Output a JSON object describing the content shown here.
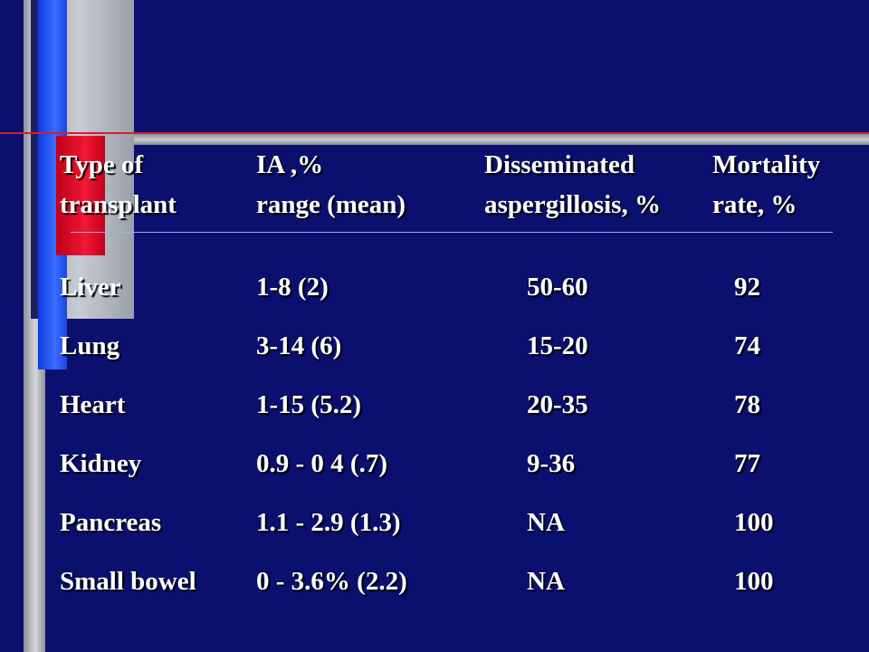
{
  "table": {
    "headers": [
      {
        "line1": "Type of",
        "line2": "transplant"
      },
      {
        "line1": "IA ,%",
        "line2": "range (mean)"
      },
      {
        "line1": "Disseminated",
        "line2": "aspergillosis, %"
      },
      {
        "line1": "Mortality",
        "line2": "rate, %"
      }
    ],
    "rows": [
      {
        "type": "Liver",
        "ia": "1-8 (2)",
        "disseminated": "50-60",
        "mortality": "92"
      },
      {
        "type": "Lung",
        "ia": "3-14 (6)",
        "disseminated": "15-20",
        "mortality": "74"
      },
      {
        "type": "Heart",
        "ia": "1-15 (5.2)",
        "disseminated": "20-35",
        "mortality": "78"
      },
      {
        "type": "Kidney",
        "ia": "0.9 - 0 4 (.7)",
        "disseminated": "9-36",
        "mortality": "77"
      },
      {
        "type": "Pancreas",
        "ia": "1.1 - 2.9 (1.3)",
        "disseminated": "NA",
        "mortality": "100"
      },
      {
        "type": "Small bowel",
        "ia": "0 - 3.6% (2.2)",
        "disseminated": "NA",
        "mortality": "100"
      }
    ]
  },
  "colors": {
    "background": "#0b0f6e",
    "accent_red": "#e01030",
    "accent_blue": "#1846e8",
    "accent_gray": "#c8ccd2",
    "text": "#ffffff"
  }
}
